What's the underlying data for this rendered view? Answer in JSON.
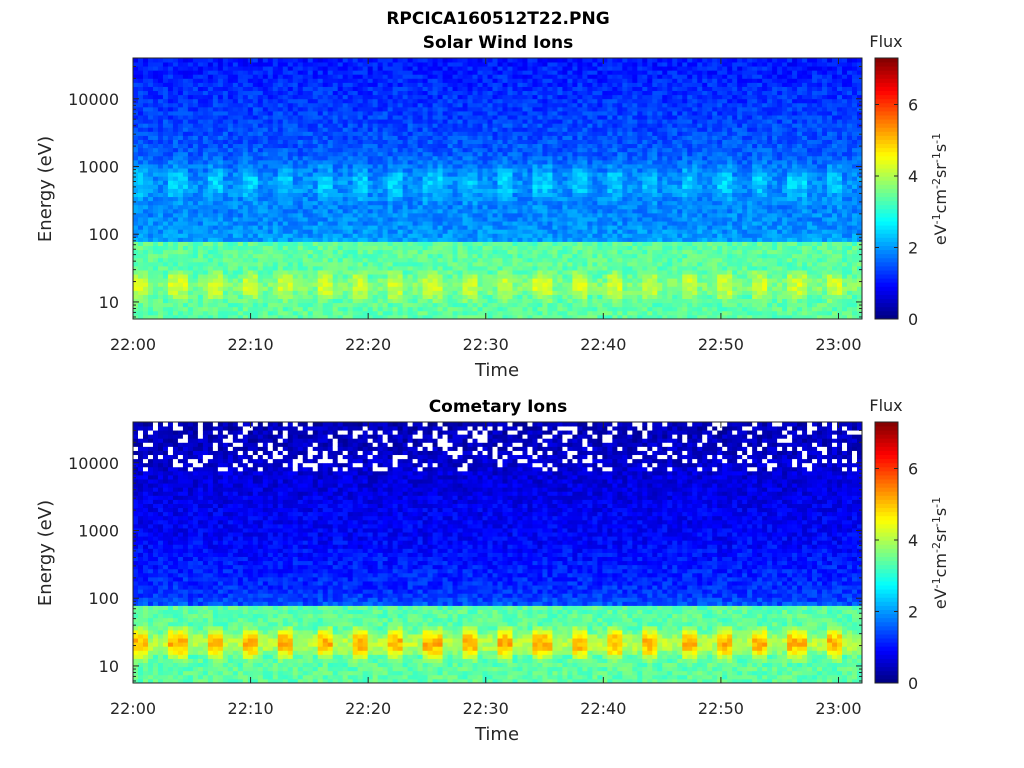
{
  "figure_title": "RPCICA160512T22.PNG",
  "chart_data": [
    {
      "type": "heatmap",
      "title": "Solar Wind Ions",
      "xlabel": "Time",
      "ylabel": "Energy (eV)",
      "y_scale": "log",
      "ylim": [
        5.6,
        40000
      ],
      "x_range": [
        "22:00",
        "23:02"
      ],
      "x_ticks": [
        "22:00",
        "22:10",
        "22:20",
        "22:30",
        "22:40",
        "22:50",
        "23:00"
      ],
      "y_ticks": [
        "10",
        "100",
        "1000",
        "10000"
      ],
      "colorbar": {
        "label": "Flux",
        "unit": "eV-1cm-2sr-1s-1",
        "range": [
          0,
          7.3
        ],
        "ticks": [
          "0",
          "2",
          "4",
          "6"
        ],
        "colormap": "jet"
      },
      "flux_profile": {
        "background_log_flux_high_energy": 1.2,
        "band_energy_ev": 600,
        "band_peak_log_flux": 3.0,
        "low_energy_peak_ev": 18,
        "low_energy_peak_log_flux": 4.6,
        "pulse_period_min": 3.1
      }
    },
    {
      "type": "heatmap",
      "title": "Cometary Ions",
      "xlabel": "Time",
      "ylabel": "Energy (eV)",
      "y_scale": "log",
      "ylim": [
        5.6,
        40000
      ],
      "x_range": [
        "22:00",
        "23:02"
      ],
      "x_ticks": [
        "22:00",
        "22:10",
        "22:20",
        "22:30",
        "22:40",
        "22:50",
        "23:00"
      ],
      "y_ticks": [
        "10",
        "100",
        "1000",
        "10000"
      ],
      "colorbar": {
        "label": "Flux",
        "unit": "eV-1cm-2sr-1s-1",
        "range": [
          0,
          7.3
        ],
        "ticks": [
          "0",
          "2",
          "4",
          "6"
        ],
        "colormap": "jet"
      },
      "flux_profile": {
        "background_log_flux_high_energy": 0.5,
        "band_energy_ev": 800,
        "band_peak_log_flux": 2.2,
        "low_energy_peak_ev": 22,
        "low_energy_peak_log_flux": 6.2,
        "pulse_period_min": 3.1,
        "missing_data_above_ev": 8000
      }
    }
  ]
}
